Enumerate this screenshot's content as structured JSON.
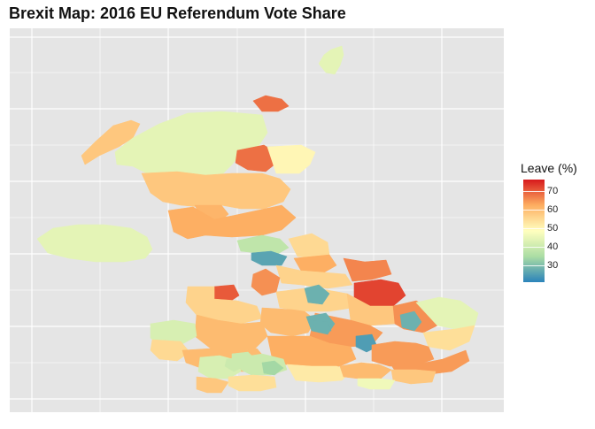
{
  "title": "Brexit Map: 2016 EU Referendum Vote Share",
  "legend": {
    "title": "Leave (%)",
    "ticks": [
      "70",
      "60",
      "50",
      "40",
      "30"
    ],
    "tick_values": [
      70,
      60,
      50,
      40,
      30
    ],
    "range": [
      21,
      76
    ],
    "colors": [
      "#2b83ba",
      "#abdda4",
      "#ffffbf",
      "#fdae61",
      "#d7191c"
    ]
  },
  "panel": {
    "background": "#e5e5e5",
    "grid_color": "#ffffff",
    "grid": true
  },
  "map_data": {
    "type": "choropleth",
    "variable": "Leave (%)",
    "regions": [
      {
        "id": "shetland",
        "leave": 44
      },
      {
        "id": "orkney",
        "leave": 68
      },
      {
        "id": "western-isles",
        "leave": 58
      },
      {
        "id": "highland",
        "leave": 44
      },
      {
        "id": "aberdeenshire",
        "leave": 68
      },
      {
        "id": "moray",
        "leave": 50
      },
      {
        "id": "central-scotland",
        "leave": 58
      },
      {
        "id": "fife",
        "leave": 61
      },
      {
        "id": "scottish-borders",
        "leave": 62
      },
      {
        "id": "northern-ireland",
        "leave": 44
      },
      {
        "id": "cumbria-north",
        "leave": 38
      },
      {
        "id": "cumbria-lakes",
        "leave": 26
      },
      {
        "id": "northumberland",
        "leave": 55
      },
      {
        "id": "durham",
        "leave": 62
      },
      {
        "id": "yorkshire-dales",
        "leave": 56
      },
      {
        "id": "north-yorkshire-east",
        "leave": 66
      },
      {
        "id": "lancashire-north",
        "leave": 65
      },
      {
        "id": "east-yorkshire",
        "leave": 72
      },
      {
        "id": "greater-manchester",
        "leave": 56
      },
      {
        "id": "manchester-city",
        "leave": 28
      },
      {
        "id": "west-yorkshire",
        "leave": 58
      },
      {
        "id": "lincolnshire",
        "leave": 65
      },
      {
        "id": "anglesey",
        "leave": 70
      },
      {
        "id": "north-wales",
        "leave": 56
      },
      {
        "id": "midlands-west",
        "leave": 60
      },
      {
        "id": "midlands-east",
        "leave": 64
      },
      {
        "id": "birmingham",
        "leave": 28
      },
      {
        "id": "norfolk",
        "leave": 44
      },
      {
        "id": "suffolk",
        "leave": 54
      },
      {
        "id": "cambridge",
        "leave": 28
      },
      {
        "id": "mid-wales",
        "leave": 60
      },
      {
        "id": "ceredigion",
        "leave": 42
      },
      {
        "id": "pembrokeshire",
        "leave": 55
      },
      {
        "id": "south-wales",
        "leave": 60
      },
      {
        "id": "cardiff",
        "leave": 40
      },
      {
        "id": "oxfordshire",
        "leave": 62
      },
      {
        "id": "oxford",
        "leave": 28
      },
      {
        "id": "london",
        "leave": 25
      },
      {
        "id": "essex",
        "leave": 64
      },
      {
        "id": "kent",
        "leave": 64
      },
      {
        "id": "devon-north",
        "leave": 42
      },
      {
        "id": "somerset",
        "leave": 40
      },
      {
        "id": "bristol",
        "leave": 34
      },
      {
        "id": "wiltshire",
        "leave": 52
      },
      {
        "id": "hampshire",
        "leave": 60
      },
      {
        "id": "sussex",
        "leave": 58
      },
      {
        "id": "south-downs",
        "leave": 46
      },
      {
        "id": "cornwall",
        "leave": 58
      },
      {
        "id": "devon-south",
        "leave": 54
      },
      {
        "id": "exeter",
        "leave": 40
      }
    ]
  }
}
